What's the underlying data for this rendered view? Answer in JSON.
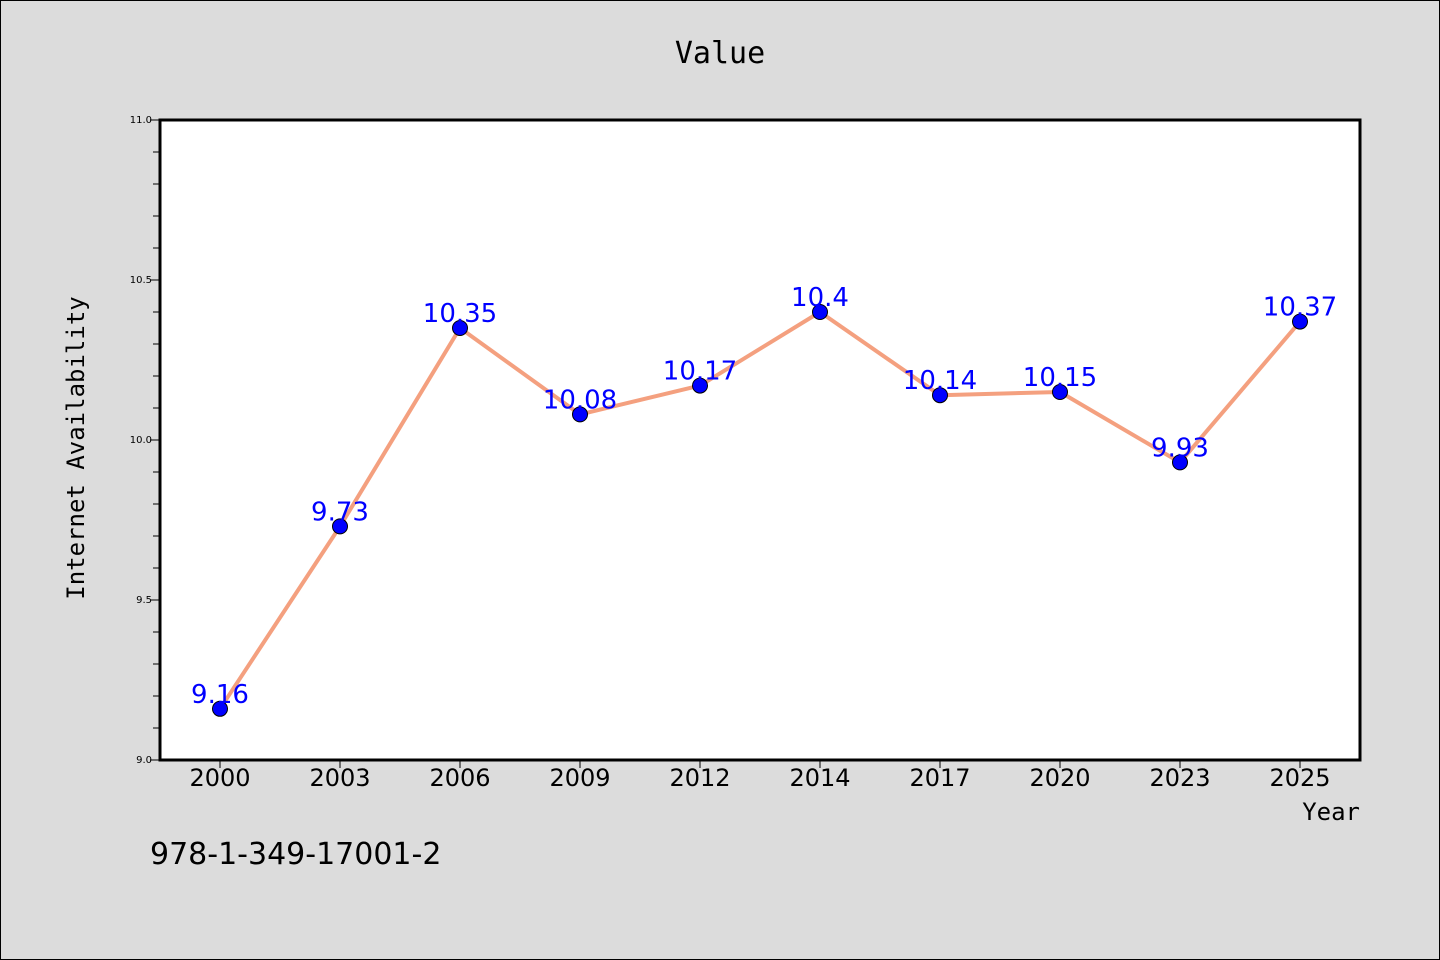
{
  "chart_data": {
    "type": "line",
    "title": "Value",
    "xlabel": "Year",
    "ylabel": "Internet Availability",
    "categories": [
      "2000",
      "2003",
      "2006",
      "2009",
      "2012",
      "2014",
      "2017",
      "2020",
      "2023",
      "2025"
    ],
    "series": [
      {
        "values": [
          9.16,
          9.73,
          10.35,
          10.08,
          10.17,
          10.4,
          10.14,
          10.15,
          9.93,
          10.37
        ]
      }
    ],
    "data_labels": [
      "9.16",
      "9.73",
      "10.35",
      "10.08",
      "10.17",
      "10.4",
      "10.14",
      "10.15",
      "9.93",
      "10.37"
    ],
    "ylim": [
      9.0,
      11.0
    ],
    "y_ticks": [
      "9.0",
      "9.5",
      "10.0",
      "10.5",
      "11.0"
    ],
    "grid": false,
    "colors": {
      "line": "#f4a07f",
      "marker": "#0000ff",
      "data_label": "#0000ff",
      "background": "#dcdcdc",
      "plot_background": "#ffffff"
    }
  },
  "footnote": "978-1-349-17001-2"
}
